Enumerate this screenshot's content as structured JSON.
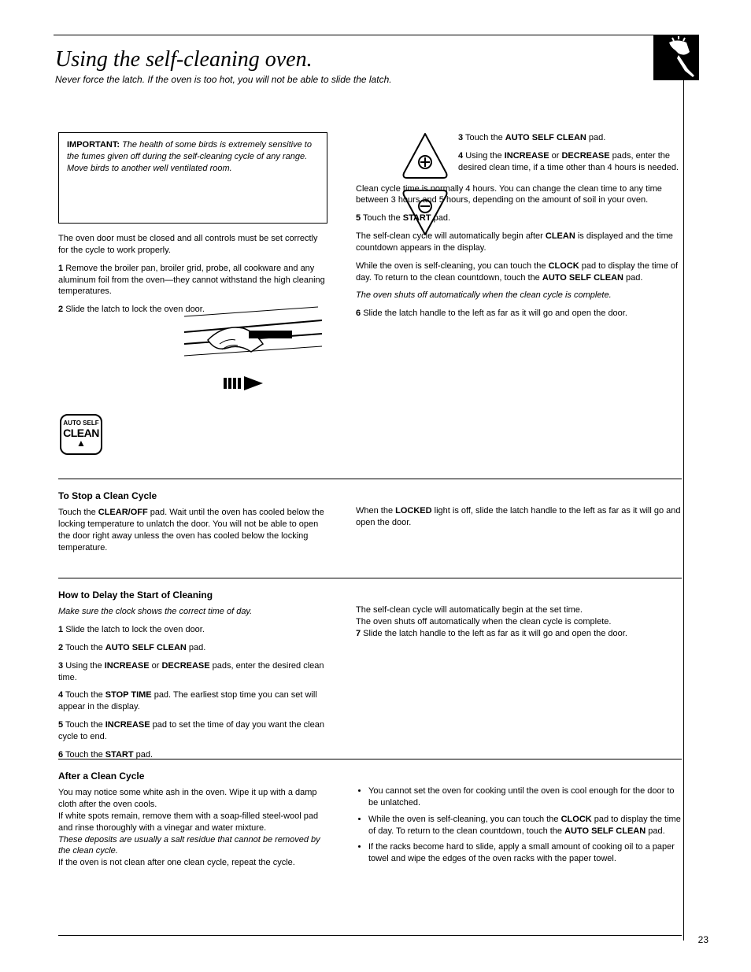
{
  "page_number": "23",
  "colors": {
    "text": "#000000",
    "background": "#ffffff",
    "border": "#000000"
  },
  "title": "Using the self-cleaning oven.",
  "subtitle": "Never force the latch. If the oven is too hot, you will not be able to slide the latch.",
  "warning_box": {
    "heading": "IMPORTANT:",
    "body": "The health of some birds is extremely sensitive to the fumes given off during the self-cleaning cycle of any range. Move birds to another well ventilated room."
  },
  "upper_left_block": [
    "The oven door must be closed and all controls must be set correctly for the cycle to work properly.",
    {
      "num": "1",
      "text": "Remove the broiler pan, broiler grid, probe, all cookware and any aluminum foil from the oven—they cannot withstand the high cleaning temperatures."
    },
    {
      "num": "2",
      "text": "Slide the latch to lock the oven door."
    }
  ],
  "upper_right_block": [
    {
      "num": "3",
      "html": "Touch the <b>AUTO SELF CLEAN</b> pad."
    },
    {
      "num": "4",
      "html": "Using the <b>INCREASE</b> or <b>DECREASE</b> pads, enter the desired clean time, if a time other than 4 hours is needed."
    },
    "Clean cycle time is normally 4 hours. You can change the clean time to any time between 3 hours and 5 hours, depending on the amount of soil in your oven.",
    {
      "num": "5",
      "html": "Touch the <b>START</b> pad."
    },
    "The self-clean cycle will automatically begin after <b>CLEAN</b> is displayed and the time countdown appears in the display.",
    "While the oven is self-cleaning, you can touch the <b>CLOCK</b> pad to display the time of day. To return to the clean countdown, touch the <b>AUTO SELF CLEAN</b> pad.",
    {
      "italic": true,
      "text": "The oven shuts off automatically when the clean cycle is complete."
    },
    {
      "num": "6",
      "html": "Slide the latch handle to the left as far as it will go and open the door."
    }
  ],
  "section2": {
    "heading": "To Stop a Clean Cycle",
    "left": "Touch the <b>CLEAR/OFF</b> pad. Wait until the oven has cooled below the locking temperature to unlatch the door. You will not be able to open the door right away unless the oven has cooled below the locking temperature.",
    "right": "When the <b>LOCKED</b> light is off, slide the latch handle to the left as far as it will go and open the door."
  },
  "section3": {
    "heading": "How to Delay the Start of Cleaning",
    "left_intro": "Make sure the clock shows the correct time of day.",
    "left_steps": [
      {
        "num": "1",
        "text": "Slide the latch to lock the oven door."
      },
      {
        "num": "2",
        "html": "Touch the <b>AUTO SELF CLEAN</b> pad."
      },
      {
        "num": "3",
        "html": "Using the <b>INCREASE</b> or <b>DECREASE</b> pads, enter the desired clean time."
      },
      {
        "num": "4",
        "html": "Touch the <b>STOP TIME</b> pad. The earliest stop time you can set will appear in the display."
      },
      {
        "num": "5",
        "html": "Touch the <b>INCREASE</b> pad to set the time of day you want the clean cycle to end."
      },
      {
        "num": "6",
        "html": "Touch the <b>START</b> pad."
      }
    ],
    "right": "The self-clean cycle will automatically begin at the set time.<br>The oven shuts off automatically when the clean cycle is complete.<br><span class=\"step\"><b>7</b> Slide the latch handle to the left as far as it will go and open the door.</span>"
  },
  "section4": {
    "heading": "After a Clean Cycle",
    "left": "You may notice some white ash in the oven. Wipe it up with a damp cloth after the oven cools.<br>If white spots remain, remove them with a soap-filled steel-wool pad and rinse thoroughly with a vinegar and water mixture.<br><span class=\"it\">These deposits are usually a salt residue that cannot be removed by the clean cycle.</span><br>If the oven is not clean after one clean cycle, repeat the cycle.",
    "right_items": [
      "You cannot set the oven for cooking until the oven is cool enough for the door to be unlatched.",
      "While the oven is self-cleaning, you can touch the <b>CLOCK</b> pad to display the time of day. To return to the clean countdown, touch the <b>AUTO SELF CLEAN</b> pad.",
      "If the racks become hard to slide, apply a small amount of cooking oil to a paper towel and wipe the edges of the oven racks with the paper towel."
    ]
  },
  "icons": {
    "inc_label": "INCREASE",
    "dec_label": "DECREASE",
    "pad_l1": "AUTO SELF",
    "pad_l2": "CLEAN"
  }
}
